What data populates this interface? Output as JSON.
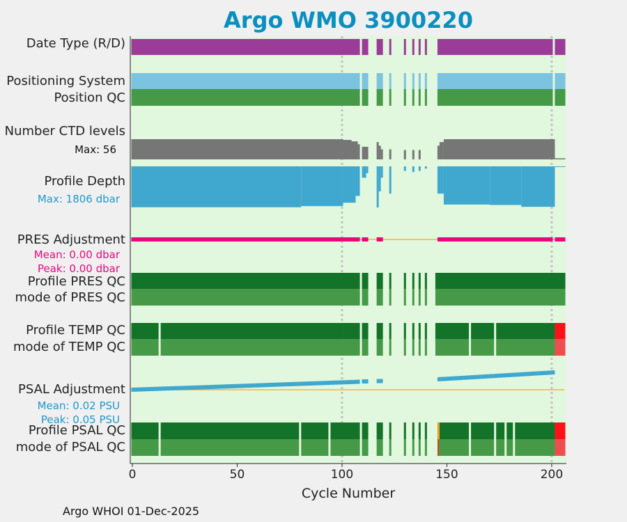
{
  "title": "Argo WMO 3900220",
  "footer": "Argo WHOI 01-Dec-2025",
  "colors": {
    "panel_bg": "#e2f8de",
    "date_type": "#9b3c98",
    "positioning": "#7cc3df",
    "qc_good": "#137328",
    "qc_mode": "#459947",
    "qc_bad": "#ff1018",
    "qc_bad_mode": "#ee4c4f",
    "qc_flag": "#e6a020",
    "ctd_levels": "#767676",
    "profile_depth": "#40a8cf",
    "pres_adj": "#e8087c",
    "psal_adj": "#40a8cf",
    "zero_line": "#f2b43c",
    "title": "#0a8fbf"
  },
  "rows": {
    "date_type": "Date Type (R/D)",
    "positioning": "Positioning System",
    "position_qc": "Position QC",
    "ctd_levels": "Number CTD levels",
    "ctd_max": "Max: 56",
    "profile_depth": "Profile Depth",
    "depth_max": "Max: 1806 dbar",
    "pres_adj": "PRES Adjustment",
    "pres_mean": "Mean: 0.00 dbar",
    "pres_peak": "Peak: 0.00 dbar",
    "pres_qc": "Profile PRES QC",
    "pres_mode": "mode of PRES QC",
    "temp_qc": "Profile TEMP QC",
    "temp_mode": "mode of TEMP QC",
    "psal_adj": "PSAL Adjustment",
    "psal_mean": "Mean: 0.02 PSU",
    "psal_peak": "Peak: 0.05 PSU",
    "psal_qc": "Profile PSAL QC",
    "psal_mode": "mode of PSAL QC"
  },
  "chart_data": {
    "type": "timeline",
    "xlabel": "Cycle Number",
    "xlim": [
      -1,
      207
    ],
    "xticks": [
      0,
      50,
      100,
      150,
      200
    ],
    "xtick_labels": [
      "0",
      "50",
      "100",
      "150",
      "200"
    ],
    "gridlines_x": [
      100,
      200
    ],
    "present_ranges": [
      [
        0,
        108
      ],
      [
        110,
        112
      ],
      [
        117,
        119
      ],
      [
        123,
        123
      ],
      [
        130,
        130
      ],
      [
        134,
        134
      ],
      [
        137,
        137
      ],
      [
        140,
        140
      ],
      [
        145,
        206
      ]
    ],
    "date_type_ranges": [
      [
        0,
        108
      ],
      [
        110,
        112
      ],
      [
        117,
        119
      ],
      [
        123,
        123
      ],
      [
        130,
        130
      ],
      [
        134,
        134
      ],
      [
        137,
        137
      ],
      [
        140,
        140
      ],
      [
        146,
        200
      ],
      [
        202,
        206
      ]
    ],
    "positioning_ranges": [
      [
        0,
        108
      ],
      [
        110,
        112
      ],
      [
        117,
        119
      ],
      [
        123,
        123
      ],
      [
        130,
        130
      ],
      [
        134,
        134
      ],
      [
        137,
        137
      ],
      [
        140,
        140
      ],
      [
        146,
        200
      ],
      [
        202,
        206
      ]
    ],
    "ctd_levels_max": 56,
    "ctd_levels_segments": [
      {
        "x": [
          0,
          100
        ],
        "v": 56
      },
      {
        "x": [
          101,
          104
        ],
        "v": 54
      },
      {
        "x": [
          105,
          107
        ],
        "v": 50
      },
      {
        "x": [
          108,
          108
        ],
        "v": 42
      },
      {
        "x": [
          110,
          112
        ],
        "v": 35
      },
      {
        "x": [
          117,
          117
        ],
        "v": 48
      },
      {
        "x": [
          118,
          118
        ],
        "v": 38
      },
      {
        "x": [
          119,
          119
        ],
        "v": 28
      },
      {
        "x": [
          123,
          123
        ],
        "v": 28
      },
      {
        "x": [
          130,
          130
        ],
        "v": 26
      },
      {
        "x": [
          134,
          134
        ],
        "v": 26
      },
      {
        "x": [
          137,
          137
        ],
        "v": 26
      },
      {
        "x": [
          146,
          146
        ],
        "v": 38
      },
      {
        "x": [
          147,
          148
        ],
        "v": 48
      },
      {
        "x": [
          149,
          201
        ],
        "v": 56
      },
      {
        "x": [
          202,
          206
        ],
        "v": 3
      }
    ],
    "depth_max": 1806,
    "depth_segments": [
      {
        "x": [
          0,
          80
        ],
        "v": 1800
      },
      {
        "x": [
          81,
          100
        ],
        "v": 1750
      },
      {
        "x": [
          101,
          106
        ],
        "v": 1600
      },
      {
        "x": [
          107,
          108
        ],
        "v": 1300
      },
      {
        "x": [
          110,
          111
        ],
        "v": 500
      },
      {
        "x": [
          112,
          112
        ],
        "v": 300
      },
      {
        "x": [
          117,
          117
        ],
        "v": 1806
      },
      {
        "x": [
          118,
          118
        ],
        "v": 1100
      },
      {
        "x": [
          119,
          119
        ],
        "v": 500
      },
      {
        "x": [
          123,
          123
        ],
        "v": 1200
      },
      {
        "x": [
          130,
          130
        ],
        "v": 200
      },
      {
        "x": [
          134,
          134
        ],
        "v": 250
      },
      {
        "x": [
          137,
          137
        ],
        "v": 200
      },
      {
        "x": [
          140,
          140
        ],
        "v": 100
      },
      {
        "x": [
          146,
          148
        ],
        "v": 1200
      },
      {
        "x": [
          149,
          170
        ],
        "v": 1680
      },
      {
        "x": [
          171,
          185
        ],
        "v": 1700
      },
      {
        "x": [
          186,
          201
        ],
        "v": 1780
      },
      {
        "x": [
          202,
          206
        ],
        "v": 20
      }
    ],
    "pres_adjustment": {
      "mean": 0.0,
      "peak": 0.0,
      "unit": "dbar",
      "ranges": [
        [
          0,
          108
        ],
        [
          110,
          112
        ],
        [
          117,
          119
        ],
        [
          146,
          200
        ],
        [
          202,
          206
        ]
      ]
    },
    "pres_qc_ranges": [
      [
        0,
        108
      ],
      [
        110,
        112
      ],
      [
        117,
        119
      ],
      [
        123,
        123
      ],
      [
        130,
        130
      ],
      [
        134,
        134
      ],
      [
        137,
        137
      ],
      [
        140,
        140
      ],
      [
        145,
        206
      ]
    ],
    "temp_qc_ranges": [
      [
        0,
        12
      ],
      [
        14,
        100
      ],
      [
        101,
        108
      ],
      [
        110,
        112
      ],
      [
        117,
        119
      ],
      [
        123,
        123
      ],
      [
        130,
        130
      ],
      [
        134,
        134
      ],
      [
        137,
        137
      ],
      [
        140,
        140
      ],
      [
        145,
        160
      ],
      [
        162,
        172
      ],
      [
        174,
        201
      ]
    ],
    "temp_qc_bad_ranges": [
      [
        202,
        206
      ]
    ],
    "psal_adjustment": {
      "mean": 0.02,
      "peak": 0.05,
      "unit": "PSU",
      "segments": [
        {
          "x": [
            0,
            108
          ],
          "from": 0.0,
          "to": 0.023
        },
        {
          "x": [
            110,
            112
          ],
          "from": 0.024,
          "to": 0.024
        },
        {
          "x": [
            117,
            119
          ],
          "from": 0.025,
          "to": 0.025
        },
        {
          "x": [
            146,
            201
          ],
          "from": 0.03,
          "to": 0.05
        }
      ]
    },
    "psal_qc_ranges": [
      [
        0,
        12
      ],
      [
        14,
        79
      ],
      [
        81,
        93
      ],
      [
        95,
        108
      ],
      [
        110,
        112
      ],
      [
        117,
        119
      ],
      [
        123,
        123
      ],
      [
        130,
        130
      ],
      [
        134,
        134
      ],
      [
        137,
        137
      ],
      [
        140,
        140
      ],
      [
        147,
        160
      ],
      [
        162,
        172
      ],
      [
        174,
        177
      ],
      [
        179,
        181
      ],
      [
        183,
        201
      ]
    ],
    "psal_qc_flag_ranges": [
      [
        146,
        146
      ]
    ],
    "psal_qc_bad_ranges": [
      [
        202,
        206
      ]
    ]
  }
}
